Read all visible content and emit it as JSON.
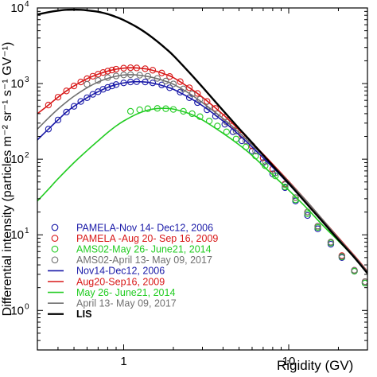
{
  "chart_data": {
    "type": "line",
    "title": "",
    "xlabel": "Rigidity (GV)",
    "ylabel": "Differential intensity (particles m⁻² sr⁻¹ s⁻¹ GV⁻¹)",
    "xscale": "log",
    "yscale": "log",
    "xlim": [
      0.3,
      30
    ],
    "ylim": [
      0.3,
      10000
    ],
    "x_ticks": [
      {
        "value": 1,
        "label": "1"
      },
      {
        "value": 10,
        "label": "10"
      }
    ],
    "y_ticks": [
      {
        "value": 1,
        "label": "10",
        "exp": "0"
      },
      {
        "value": 10,
        "label": "10",
        "exp": "1"
      },
      {
        "value": 100,
        "label": "10",
        "exp": "2"
      },
      {
        "value": 1000,
        "label": "10",
        "exp": "3"
      },
      {
        "value": 10000,
        "label": "10",
        "exp": "4"
      }
    ],
    "legend_position": "lower-left",
    "grid": false,
    "series": [
      {
        "name": "PAMELA-Nov 14- Dec12, 2006",
        "kind": "markers",
        "color": "#1a1aa8",
        "x": [
          0.35,
          0.4,
          0.45,
          0.5,
          0.55,
          0.6,
          0.65,
          0.7,
          0.75,
          0.8,
          0.85,
          0.9,
          1.0,
          1.1,
          1.2,
          1.35,
          1.5,
          1.7,
          1.9,
          2.2,
          2.5,
          2.8,
          3.2,
          3.6,
          4.1,
          4.6,
          5.2,
          6.0,
          7.0,
          8.0,
          9.5,
          11,
          13,
          15,
          18,
          21,
          25,
          29
        ],
        "y": [
          250,
          330,
          420,
          500,
          580,
          650,
          720,
          780,
          840,
          890,
          930,
          970,
          1020,
          1050,
          1060,
          1050,
          1020,
          960,
          880,
          770,
          650,
          560,
          450,
          370,
          290,
          230,
          175,
          128,
          90,
          64,
          42,
          28,
          18,
          12,
          7.5,
          5.0,
          3.3,
          2.3
        ]
      },
      {
        "name": "PAMELA -Aug 20- Sep 16, 2009",
        "kind": "markers",
        "color": "#d81818",
        "x": [
          0.35,
          0.4,
          0.45,
          0.5,
          0.55,
          0.6,
          0.65,
          0.7,
          0.75,
          0.8,
          0.85,
          0.9,
          1.0,
          1.1,
          1.2,
          1.35,
          1.5,
          1.7,
          1.9,
          2.2,
          2.5,
          2.8,
          3.2,
          3.6,
          4.1,
          4.6,
          5.2,
          6.0,
          7.0,
          8.0,
          9.5,
          11,
          13,
          15,
          18,
          21,
          25,
          29
        ],
        "y": [
          520,
          660,
          800,
          930,
          1050,
          1160,
          1250,
          1330,
          1400,
          1460,
          1510,
          1550,
          1600,
          1620,
          1610,
          1570,
          1500,
          1380,
          1240,
          1060,
          880,
          740,
          580,
          470,
          360,
          280,
          210,
          150,
          104,
          74,
          47,
          31,
          20,
          13,
          8.0,
          5.3,
          3.4,
          2.4
        ]
      },
      {
        "name": "AMS02-May 26- June21, 2014",
        "kind": "markers",
        "color": "#22cc22",
        "x": [
          1.1,
          1.25,
          1.4,
          1.6,
          1.8,
          2.0,
          2.3,
          2.6,
          2.9,
          3.3,
          3.7,
          4.2,
          4.8,
          5.5,
          6.3,
          7.2,
          8.3,
          9.5,
          11,
          13,
          15,
          18,
          21,
          25,
          29
        ],
        "y": [
          430,
          450,
          465,
          470,
          465,
          455,
          430,
          400,
          365,
          320,
          275,
          230,
          185,
          145,
          110,
          82,
          60,
          43,
          29,
          19,
          12.5,
          7.8,
          5.1,
          3.3,
          2.3
        ]
      },
      {
        "name": "AMS02-April 13- May 09, 2017",
        "kind": "markers",
        "color": "#707070",
        "x": [
          0.6,
          0.7,
          0.8,
          0.9,
          1.0,
          1.1,
          1.25,
          1.4,
          1.6,
          1.8,
          2.0,
          2.3,
          2.6,
          2.9,
          3.3,
          3.7,
          4.2,
          4.8,
          5.5,
          6.3,
          7.2,
          8.3,
          9.5,
          11,
          13,
          15,
          18,
          21,
          25,
          29
        ],
        "y": [
          980,
          1100,
          1200,
          1260,
          1300,
          1310,
          1290,
          1250,
          1170,
          1080,
          990,
          850,
          730,
          620,
          500,
          400,
          310,
          235,
          175,
          128,
          93,
          66,
          46,
          31,
          20,
          13,
          8.0,
          5.2,
          3.4,
          2.4
        ]
      },
      {
        "name": "Nov14-Dec12, 2006",
        "kind": "line",
        "color": "#1a1aa8",
        "x": [
          0.3,
          0.35,
          0.4,
          0.45,
          0.5,
          0.6,
          0.7,
          0.8,
          0.9,
          1.0,
          1.1,
          1.2,
          1.4,
          1.6,
          1.8,
          2.0,
          2.5,
          3.0,
          4.0,
          5.0,
          6.0,
          8.0,
          10,
          13,
          16,
          20,
          25,
          30
        ],
        "y": [
          180,
          250,
          330,
          420,
          500,
          650,
          780,
          890,
          970,
          1020,
          1050,
          1060,
          1040,
          980,
          910,
          840,
          650,
          510,
          320,
          210,
          145,
          78,
          47,
          25,
          15,
          8.8,
          5.1,
          3.2
        ]
      },
      {
        "name": "Aug20-Sep16, 2009",
        "kind": "line",
        "color": "#d81818",
        "x": [
          0.3,
          0.35,
          0.4,
          0.45,
          0.5,
          0.6,
          0.7,
          0.8,
          0.9,
          1.0,
          1.1,
          1.2,
          1.4,
          1.6,
          1.8,
          2.0,
          2.5,
          3.0,
          4.0,
          5.0,
          6.0,
          8.0,
          10,
          13,
          16,
          20,
          25,
          30
        ],
        "y": [
          400,
          520,
          660,
          800,
          930,
          1160,
          1330,
          1460,
          1550,
          1600,
          1620,
          1610,
          1550,
          1440,
          1320,
          1200,
          880,
          660,
          390,
          245,
          165,
          86,
          51,
          27,
          16,
          9.2,
          5.3,
          3.3
        ]
      },
      {
        "name": "May 26- June21, 2014",
        "kind": "line",
        "color": "#22cc22",
        "x": [
          0.3,
          0.35,
          0.4,
          0.5,
          0.6,
          0.7,
          0.8,
          0.9,
          1.0,
          1.2,
          1.4,
          1.6,
          1.8,
          2.0,
          2.5,
          3.0,
          4.0,
          5.0,
          6.0,
          8.0,
          10,
          13,
          16,
          20,
          25,
          30
        ],
        "y": [
          28,
          40,
          55,
          90,
          130,
          175,
          225,
          275,
          320,
          395,
          445,
          468,
          470,
          460,
          400,
          330,
          220,
          155,
          112,
          62,
          39,
          22,
          13.5,
          8.3,
          5.0,
          3.1
        ]
      },
      {
        "name": "April 13- May 09, 2017",
        "kind": "line",
        "color": "#707070",
        "x": [
          0.3,
          0.35,
          0.4,
          0.45,
          0.5,
          0.6,
          0.7,
          0.8,
          0.9,
          1.0,
          1.1,
          1.2,
          1.4,
          1.6,
          1.8,
          2.0,
          2.5,
          3.0,
          4.0,
          5.0,
          6.0,
          8.0,
          10,
          13,
          16,
          20,
          25,
          30
        ],
        "y": [
          250,
          350,
          460,
          570,
          680,
          880,
          1050,
          1170,
          1250,
          1300,
          1310,
          1300,
          1240,
          1160,
          1070,
          980,
          740,
          560,
          345,
          225,
          155,
          83,
          50,
          27,
          16,
          9.0,
          5.2,
          3.25
        ]
      },
      {
        "name": "LIS",
        "kind": "line",
        "color": "#000000",
        "x": [
          0.3,
          0.35,
          0.4,
          0.45,
          0.5,
          0.55,
          0.6,
          0.7,
          0.8,
          0.9,
          1.0,
          1.2,
          1.4,
          1.6,
          1.8,
          2.0,
          2.5,
          3.0,
          4.0,
          5.0,
          6.0,
          8.0,
          10,
          13,
          16,
          20,
          25,
          30
        ],
        "y": [
          8200,
          8800,
          9200,
          9450,
          9500,
          9450,
          9300,
          8900,
          8300,
          7600,
          6900,
          5600,
          4500,
          3600,
          2900,
          2350,
          1400,
          900,
          440,
          255,
          165,
          82,
          48,
          25,
          15,
          8.6,
          5.0,
          3.1
        ]
      }
    ]
  }
}
